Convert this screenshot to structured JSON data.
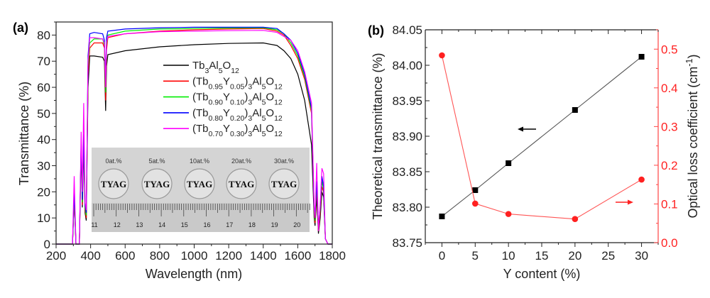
{
  "chart_data": [
    {
      "type": "line",
      "panel_label": "(a)",
      "xlabel": "Wavelength (nm)",
      "ylabel": "Transmittance (%)",
      "xlim": [
        200,
        1800
      ],
      "ylim": [
        0,
        85
      ],
      "xticks": [
        200,
        400,
        600,
        800,
        1000,
        1200,
        1400,
        1600,
        1800
      ],
      "yticks": [
        0,
        10,
        20,
        30,
        40,
        50,
        60,
        70,
        80
      ],
      "grid": false,
      "legend_position": "right-center",
      "series": [
        {
          "name": "Tb3Al5O12",
          "legend_parts": [
            [
              "Tb",
              ""
            ],
            [
              "3",
              "sub"
            ],
            [
              "Al",
              ""
            ],
            [
              "5",
              "sub"
            ],
            [
              "O",
              ""
            ],
            [
              "12",
              "sub"
            ]
          ],
          "color": "#000000",
          "x": [
            200,
            295,
            305,
            315,
            335,
            345,
            352,
            360,
            368,
            375,
            385,
            395,
            420,
            470,
            480,
            487,
            492,
            500,
            600,
            800,
            1000,
            1200,
            1400,
            1480,
            1520,
            1560,
            1600,
            1640,
            1680,
            1695,
            1700,
            1710,
            1720,
            1730,
            1740,
            1750,
            1760,
            1775,
            1800
          ],
          "y": [
            0,
            0,
            17,
            0,
            0,
            36,
            14,
            38,
            12,
            9,
            60,
            72,
            72,
            71.5,
            70,
            51,
            68,
            72.5,
            74,
            75.5,
            76.3,
            76.8,
            77,
            76,
            74,
            71,
            65,
            55,
            38,
            10,
            7,
            18,
            4,
            10,
            20,
            18,
            2,
            0,
            0
          ]
        },
        {
          "name": "(Tb0.95Y0.05)3Al5O12",
          "legend_parts": [
            [
              "(Tb",
              ""
            ],
            [
              "0.95",
              "sub"
            ],
            [
              "Y",
              ""
            ],
            [
              "0.05",
              "sub"
            ],
            [
              ")",
              ""
            ],
            [
              "3",
              "sub"
            ],
            [
              "Al",
              ""
            ],
            [
              "5",
              "sub"
            ],
            [
              "O",
              ""
            ],
            [
              "12",
              "sub"
            ]
          ],
          "color": "#ff0000",
          "x": [
            200,
            295,
            305,
            315,
            335,
            345,
            352,
            360,
            368,
            375,
            385,
            395,
            420,
            470,
            480,
            487,
            492,
            500,
            600,
            800,
            1000,
            1200,
            1400,
            1480,
            1520,
            1560,
            1600,
            1640,
            1680,
            1695,
            1700,
            1710,
            1720,
            1730,
            1740,
            1750,
            1760,
            1775,
            1800
          ],
          "y": [
            0,
            0,
            18,
            0,
            0,
            38,
            15,
            40,
            13,
            10,
            65,
            75,
            77,
            77,
            75,
            55,
            74,
            79,
            80.5,
            81.5,
            82,
            82.3,
            82.5,
            81.5,
            80,
            76,
            71,
            63,
            50,
            12,
            8,
            21,
            5,
            12,
            22,
            20,
            2,
            0,
            0
          ]
        },
        {
          "name": "(Tb0.90Y0.10)3Al5O12",
          "legend_parts": [
            [
              "(Tb",
              ""
            ],
            [
              "0.90",
              "sub"
            ],
            [
              "Y",
              ""
            ],
            [
              "0.10",
              "sub"
            ],
            [
              ")",
              ""
            ],
            [
              "3",
              "sub"
            ],
            [
              "Al",
              ""
            ],
            [
              "5",
              "sub"
            ],
            [
              "O",
              ""
            ],
            [
              "12",
              "sub"
            ]
          ],
          "color": "#00ee00",
          "x": [
            200,
            295,
            305,
            315,
            335,
            345,
            352,
            360,
            368,
            375,
            385,
            395,
            420,
            470,
            480,
            487,
            492,
            500,
            600,
            800,
            1000,
            1200,
            1400,
            1480,
            1520,
            1560,
            1600,
            1640,
            1680,
            1695,
            1700,
            1710,
            1720,
            1730,
            1740,
            1750,
            1760,
            1775,
            1800
          ],
          "y": [
            0,
            0,
            19,
            0,
            0,
            39,
            16,
            41,
            14,
            11,
            68,
            77,
            78.5,
            78.5,
            76,
            58,
            76,
            80,
            81.5,
            82.3,
            82.5,
            82.7,
            82.8,
            82,
            80.5,
            77,
            72,
            64,
            51,
            13,
            9,
            23,
            6,
            13,
            24,
            21,
            2,
            0,
            0
          ]
        },
        {
          "name": "(Tb0.80Y0.20)3Al5O12",
          "legend_parts": [
            [
              "(Tb",
              ""
            ],
            [
              "0.80",
              "sub"
            ],
            [
              "Y",
              ""
            ],
            [
              "0.20",
              "sub"
            ],
            [
              ")",
              ""
            ],
            [
              "3",
              "sub"
            ],
            [
              "Al",
              ""
            ],
            [
              "5",
              "sub"
            ],
            [
              "O",
              ""
            ],
            [
              "12",
              "sub"
            ]
          ],
          "color": "#0000ff",
          "x": [
            200,
            295,
            305,
            315,
            335,
            345,
            352,
            360,
            368,
            375,
            385,
            395,
            420,
            470,
            480,
            487,
            492,
            500,
            600,
            800,
            1000,
            1200,
            1400,
            1480,
            1520,
            1560,
            1600,
            1640,
            1680,
            1695,
            1700,
            1710,
            1720,
            1730,
            1740,
            1750,
            1760,
            1775,
            1800
          ],
          "y": [
            0,
            0,
            20,
            0,
            0,
            40,
            17,
            42,
            15,
            12,
            72,
            80.5,
            81,
            80.5,
            78,
            62,
            79,
            81.5,
            82.3,
            82.8,
            83,
            83,
            83,
            82.5,
            80.5,
            78,
            73,
            65,
            52,
            14,
            10,
            24,
            7,
            14,
            26,
            22,
            2,
            0,
            0
          ]
        },
        {
          "name": "(Tb0.70Y0.30)3Al5O12",
          "legend_parts": [
            [
              "(Tb",
              ""
            ],
            [
              "0.70",
              "sub"
            ],
            [
              "Y",
              ""
            ],
            [
              "0.30",
              "sub"
            ],
            [
              ")",
              ""
            ],
            [
              "3",
              "sub"
            ],
            [
              "Al",
              ""
            ],
            [
              "5",
              "sub"
            ],
            [
              "O",
              ""
            ],
            [
              "12",
              "sub"
            ]
          ],
          "color": "#ff00ff",
          "x": [
            200,
            295,
            305,
            315,
            335,
            345,
            352,
            360,
            368,
            375,
            385,
            395,
            420,
            470,
            480,
            487,
            492,
            500,
            600,
            800,
            1000,
            1200,
            1400,
            1480,
            1520,
            1560,
            1600,
            1640,
            1680,
            1695,
            1700,
            1710,
            1720,
            1730,
            1740,
            1750,
            1760,
            1775,
            1800
          ],
          "y": [
            0,
            0,
            26,
            0,
            0,
            43,
            20,
            54,
            16,
            13,
            70,
            79,
            79,
            78.5,
            77,
            60,
            77,
            79.5,
            80.5,
            81.3,
            81.5,
            81.7,
            81.8,
            81,
            79.5,
            78,
            74,
            66,
            54,
            15,
            10,
            31,
            5,
            15,
            29,
            27,
            2,
            0,
            0
          ]
        }
      ],
      "inset": {
        "sample_labels": [
          "0at.%",
          "5at.%",
          "10at.%",
          "20at.%",
          "30at.%"
        ],
        "disk_text": "TYAG",
        "ruler_labels": [
          "11",
          "12",
          "13",
          "14",
          "15",
          "16",
          "17",
          "18",
          "19",
          "20"
        ]
      }
    },
    {
      "type": "line",
      "panel_label": "(b)",
      "xlabel": "Y content (%)",
      "ylabel_left": "Theoretical transmittance (%)",
      "ylabel_right_parts": [
        [
          "Optical loss coefficient (cm",
          ""
        ],
        [
          "-1",
          "sup"
        ],
        [
          ")",
          ""
        ]
      ],
      "xlim": [
        -2.5,
        32.5
      ],
      "ylim_left": [
        83.75,
        84.05
      ],
      "ylim_right": [
        0,
        0.55
      ],
      "xticks": [
        "0",
        "5",
        "10",
        "15",
        "20",
        "25",
        "30"
      ],
      "yticks_left": [
        "83.75",
        "83.80",
        "83.85",
        "83.90",
        "83.95",
        "84.00",
        "84.05"
      ],
      "yticks_right": [
        "0.0",
        "0.1",
        "0.2",
        "0.3",
        "0.4",
        "0.5"
      ],
      "grid": false,
      "series": [
        {
          "axis": "left",
          "marker": "square",
          "color": "#000000",
          "x": [
            0,
            5,
            10,
            20,
            30
          ],
          "y": [
            83.787,
            83.824,
            83.862,
            83.937,
            84.012
          ]
        },
        {
          "axis": "right",
          "marker": "circle",
          "color": "#ff2020",
          "x": [
            0,
            5,
            10,
            20,
            30
          ],
          "y": [
            0.484,
            0.101,
            0.074,
            0.061,
            0.163
          ]
        }
      ]
    }
  ]
}
